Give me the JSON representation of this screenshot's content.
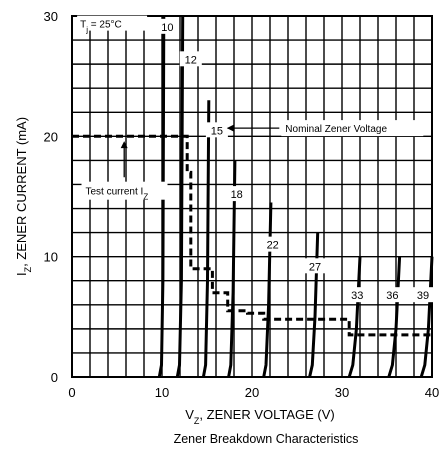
{
  "chart_data": {
    "type": "line",
    "xlabel": "V",
    "xlabel_sub": "Z",
    "xlabel_rest": ", ZENER VOLTAGE (V)",
    "ylabel": "I",
    "ylabel_sub": "Z",
    "ylabel_rest": ", ZENER CURRENT (mA)",
    "caption": "Zener Breakdown Characteristics",
    "condition_prefix": "T",
    "condition_sub": "j",
    "condition_rest": " = 25°C",
    "xlim": [
      0,
      40
    ],
    "ylim": [
      0,
      30
    ],
    "x_ticks": [
      "0",
      "10",
      "20",
      "30",
      "40"
    ],
    "y_ticks": [
      "0",
      "10",
      "20",
      "30"
    ],
    "grid": true,
    "series": [
      {
        "label": "10",
        "x": [
          9.7,
          9.95,
          10.1,
          10.2
        ],
        "y": [
          0,
          1,
          8,
          30
        ]
      },
      {
        "label": "12",
        "x": [
          11.7,
          11.95,
          12.15,
          12.3
        ],
        "y": [
          0,
          1,
          8,
          30
        ]
      },
      {
        "label": "15",
        "x": [
          14.6,
          14.85,
          15.05,
          15.2
        ],
        "y": [
          0,
          1,
          8,
          23
        ]
      },
      {
        "label": "18",
        "x": [
          17.4,
          17.65,
          17.9,
          18.1
        ],
        "y": [
          0,
          1,
          7,
          18
        ]
      },
      {
        "label": "22",
        "x": [
          21.3,
          21.55,
          21.85,
          22.1
        ],
        "y": [
          0,
          1,
          6,
          14.5
        ]
      },
      {
        "label": "27",
        "x": [
          26.4,
          26.7,
          27.0,
          27.3
        ],
        "y": [
          0,
          1,
          5,
          12
        ]
      },
      {
        "label": "33",
        "x": [
          30.8,
          31.2,
          31.6,
          32.0
        ],
        "y": [
          0,
          1,
          4,
          10
        ]
      },
      {
        "label": "36",
        "x": [
          35.2,
          35.6,
          36.0,
          36.4
        ],
        "y": [
          0,
          1,
          4,
          10
        ]
      },
      {
        "label": "39",
        "x": [
          38.8,
          39.2,
          39.6,
          40.0
        ],
        "y": [
          0,
          1,
          4,
          10
        ]
      }
    ],
    "test_current_line": {
      "x": [
        0,
        12.8,
        12.8,
        13.2,
        13.2,
        15.6,
        15.6,
        17.3,
        17.3,
        19.5,
        19.5,
        21.3,
        21.3,
        26.3,
        26.3,
        30.8,
        30.8,
        40
      ],
      "y": [
        20,
        20,
        17,
        17,
        9,
        9,
        7,
        7,
        5.5,
        5.5,
        5.3,
        5.3,
        4.8,
        4.8,
        4.8,
        4.8,
        3.5,
        3.5
      ]
    },
    "annotations": {
      "nominal": "Nominal Zener Voltage",
      "test_prefix": "Test current I",
      "test_sub": "Z"
    }
  }
}
